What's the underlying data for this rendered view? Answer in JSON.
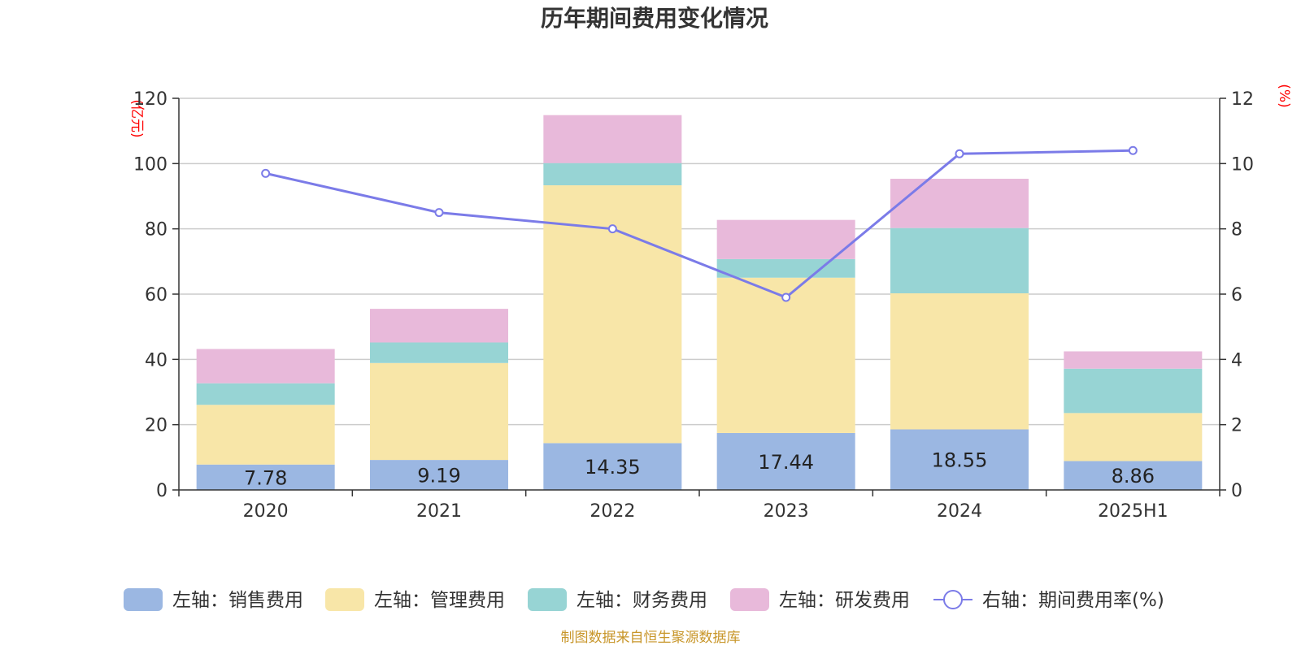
{
  "chart_data": {
    "type": "bar",
    "stacked": true,
    "title": "历年期间费用变化情况",
    "categories": [
      "2020",
      "2021",
      "2022",
      "2023",
      "2024",
      "2025H1"
    ],
    "left_axis": {
      "unit": "(亿元)",
      "ylim": [
        0,
        120
      ],
      "ticks": [
        "0",
        "20",
        "40",
        "60",
        "80",
        "100",
        "120"
      ]
    },
    "right_axis": {
      "unit": "(%)",
      "ylim": [
        0,
        12
      ],
      "ticks": [
        "0",
        "2",
        "4",
        "6",
        "8",
        "10",
        "12"
      ]
    },
    "grid": true,
    "legend_position": "bottom",
    "series": [
      {
        "name": "左轴：销售费用",
        "axis": "left",
        "type": "bar",
        "color": "#9bb7e2",
        "values": [
          7.78,
          9.19,
          14.35,
          17.44,
          18.55,
          8.86
        ],
        "labels": [
          "7.78",
          "9.19",
          "14.35",
          "17.44",
          "18.55",
          "8.86"
        ]
      },
      {
        "name": "左轴：管理费用",
        "axis": "left",
        "type": "bar",
        "color": "#f8e6a8",
        "values": [
          18.3,
          29.7,
          79.0,
          47.6,
          41.7,
          14.7
        ]
      },
      {
        "name": "左轴：财务费用",
        "axis": "left",
        "type": "bar",
        "color": "#97d4d4",
        "values": [
          6.6,
          6.3,
          6.8,
          5.7,
          20.0,
          13.6
        ]
      },
      {
        "name": "左轴：研发费用",
        "axis": "left",
        "type": "bar",
        "color": "#e8b9da",
        "values": [
          10.5,
          10.3,
          14.7,
          12.0,
          15.1,
          5.3
        ]
      },
      {
        "name": "右轴：期间费用率(%)",
        "axis": "right",
        "type": "line",
        "color": "#7b7be8",
        "values": [
          9.7,
          8.5,
          8.0,
          5.9,
          10.3,
          10.4
        ]
      }
    ],
    "source": "制图数据来自恒生聚源数据库"
  }
}
